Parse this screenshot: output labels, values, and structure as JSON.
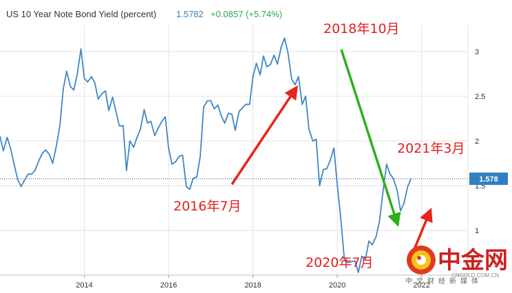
{
  "header": {
    "title": "US 10 Year Note Bond Yield (percent)",
    "last_value": "1.5782",
    "change": "+0.0857 (+5.74%)"
  },
  "price_tag": "1.578",
  "colors": {
    "line": "#3d86c6",
    "up_arrow": "#e8251f",
    "down_arrow": "#2fae1d",
    "annotation": "#e02020",
    "price_line": "#2a3a9a",
    "price_tag_bg": "#2f7fc1",
    "grid": "#e3e3e3"
  },
  "annotations": {
    "peak": "2018年10月",
    "low_2016": "2016年7月",
    "low_2020": "2020年7月",
    "recent": "2021年3月"
  },
  "watermark": {
    "name": "中金网",
    "url": "CNGOLD.COM.CN",
    "subtitle": "中文财经新媒体"
  },
  "chart_data": {
    "type": "line",
    "title": "US 10 Year Note Bond Yield (percent)",
    "xlabel": "",
    "ylabel": "",
    "x_tick_labels": [
      "2014",
      "2016",
      "2018",
      "2020",
      "2022"
    ],
    "y_tick_labels": [
      "1",
      "1.5",
      "2",
      "2.5",
      "3"
    ],
    "xlim": [
      2012.0,
      2023.1
    ],
    "ylim": [
      0.5,
      3.3
    ],
    "grid": true,
    "last_value": 1.578,
    "series": [
      {
        "values": [
          [
            2012.0,
            2.05
          ],
          [
            2012.08,
            1.89
          ],
          [
            2012.17,
            2.04
          ],
          [
            2012.25,
            1.92
          ],
          [
            2012.33,
            1.75
          ],
          [
            2012.42,
            1.57
          ],
          [
            2012.5,
            1.49
          ],
          [
            2012.58,
            1.56
          ],
          [
            2012.67,
            1.63
          ],
          [
            2012.75,
            1.63
          ],
          [
            2012.83,
            1.67
          ],
          [
            2012.92,
            1.78
          ],
          [
            2013.0,
            1.86
          ],
          [
            2013.08,
            1.9
          ],
          [
            2013.17,
            1.85
          ],
          [
            2013.25,
            1.75
          ],
          [
            2013.33,
            1.93
          ],
          [
            2013.42,
            2.17
          ],
          [
            2013.5,
            2.58
          ],
          [
            2013.58,
            2.78
          ],
          [
            2013.67,
            2.61
          ],
          [
            2013.75,
            2.57
          ],
          [
            2013.83,
            2.74
          ],
          [
            2013.92,
            3.03
          ],
          [
            2014.0,
            2.7
          ],
          [
            2014.08,
            2.66
          ],
          [
            2014.17,
            2.72
          ],
          [
            2014.25,
            2.65
          ],
          [
            2014.33,
            2.47
          ],
          [
            2014.42,
            2.53
          ],
          [
            2014.5,
            2.56
          ],
          [
            2014.58,
            2.34
          ],
          [
            2014.67,
            2.49
          ],
          [
            2014.75,
            2.33
          ],
          [
            2014.83,
            2.17
          ],
          [
            2014.92,
            2.17
          ],
          [
            2015.0,
            1.67
          ],
          [
            2015.08,
            2.0
          ],
          [
            2015.17,
            1.93
          ],
          [
            2015.25,
            2.04
          ],
          [
            2015.33,
            2.13
          ],
          [
            2015.42,
            2.35
          ],
          [
            2015.5,
            2.2
          ],
          [
            2015.58,
            2.22
          ],
          [
            2015.67,
            2.06
          ],
          [
            2015.75,
            2.14
          ],
          [
            2015.83,
            2.21
          ],
          [
            2015.92,
            2.27
          ],
          [
            2016.0,
            1.92
          ],
          [
            2016.08,
            1.74
          ],
          [
            2016.17,
            1.77
          ],
          [
            2016.25,
            1.83
          ],
          [
            2016.33,
            1.84
          ],
          [
            2016.42,
            1.49
          ],
          [
            2016.5,
            1.46
          ],
          [
            2016.58,
            1.58
          ],
          [
            2016.67,
            1.6
          ],
          [
            2016.75,
            1.83
          ],
          [
            2016.83,
            2.38
          ],
          [
            2016.92,
            2.45
          ],
          [
            2017.0,
            2.45
          ],
          [
            2017.08,
            2.36
          ],
          [
            2017.17,
            2.4
          ],
          [
            2017.25,
            2.28
          ],
          [
            2017.33,
            2.2
          ],
          [
            2017.42,
            2.31
          ],
          [
            2017.5,
            2.3
          ],
          [
            2017.58,
            2.12
          ],
          [
            2017.67,
            2.33
          ],
          [
            2017.75,
            2.37
          ],
          [
            2017.83,
            2.41
          ],
          [
            2017.92,
            2.41
          ],
          [
            2018.0,
            2.72
          ],
          [
            2018.08,
            2.87
          ],
          [
            2018.17,
            2.74
          ],
          [
            2018.25,
            2.95
          ],
          [
            2018.33,
            2.83
          ],
          [
            2018.42,
            2.86
          ],
          [
            2018.5,
            2.96
          ],
          [
            2018.58,
            2.86
          ],
          [
            2018.67,
            3.05
          ],
          [
            2018.75,
            3.15
          ],
          [
            2018.83,
            2.99
          ],
          [
            2018.92,
            2.69
          ],
          [
            2019.0,
            2.63
          ],
          [
            2019.08,
            2.72
          ],
          [
            2019.17,
            2.41
          ],
          [
            2019.25,
            2.5
          ],
          [
            2019.33,
            2.13
          ],
          [
            2019.42,
            2.0
          ],
          [
            2019.5,
            2.02
          ],
          [
            2019.58,
            1.5
          ],
          [
            2019.67,
            1.68
          ],
          [
            2019.75,
            1.69
          ],
          [
            2019.83,
            1.78
          ],
          [
            2019.92,
            1.92
          ],
          [
            2020.0,
            1.51
          ],
          [
            2020.08,
            1.15
          ],
          [
            2020.17,
            0.67
          ],
          [
            2020.25,
            0.64
          ],
          [
            2020.33,
            0.65
          ],
          [
            2020.42,
            0.66
          ],
          [
            2020.5,
            0.53
          ],
          [
            2020.58,
            0.71
          ],
          [
            2020.67,
            0.68
          ],
          [
            2020.75,
            0.88
          ],
          [
            2020.83,
            0.84
          ],
          [
            2020.92,
            0.93
          ],
          [
            2021.0,
            1.1
          ],
          [
            2021.08,
            1.42
          ],
          [
            2021.17,
            1.74
          ],
          [
            2021.25,
            1.63
          ],
          [
            2021.33,
            1.58
          ],
          [
            2021.42,
            1.45
          ],
          [
            2021.5,
            1.22
          ],
          [
            2021.58,
            1.3
          ],
          [
            2021.67,
            1.49
          ],
          [
            2021.75,
            1.578
          ]
        ]
      }
    ]
  }
}
